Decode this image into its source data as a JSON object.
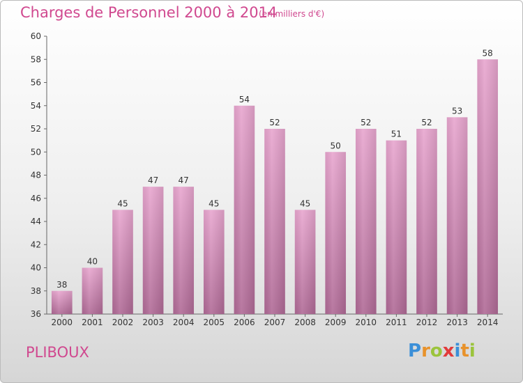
{
  "header": {
    "title": "Charges de Personnel 2000 à 2014",
    "subtitle": "(en milliers d'€)"
  },
  "footer": {
    "commune": "PLIBOUX",
    "logo_letters": [
      "P",
      "r",
      "o",
      "x",
      "i",
      "t",
      "i"
    ],
    "logo_colors": [
      "#3b8fd8",
      "#e8922b",
      "#9bc43c",
      "#e23b3b",
      "#3b8fd8",
      "#e8922b",
      "#9bc43c"
    ]
  },
  "chart_data": {
    "type": "bar",
    "title": "Charges de Personnel 2000 à 2014",
    "subtitle": "(en milliers d'€)",
    "categories": [
      "2000",
      "2001",
      "2002",
      "2003",
      "2004",
      "2005",
      "2006",
      "2007",
      "2008",
      "2009",
      "2010",
      "2011",
      "2012",
      "2013",
      "2014"
    ],
    "values": [
      38,
      40,
      45,
      47,
      47,
      45,
      54,
      52,
      45,
      50,
      52,
      51,
      52,
      53,
      58
    ],
    "ylim": [
      36,
      60
    ],
    "yticks": [
      36,
      38,
      40,
      42,
      44,
      46,
      48,
      50,
      52,
      54,
      56,
      58,
      60
    ],
    "grid": false,
    "bar_color_top": "#e8a6cf",
    "bar_color_bottom": "#b06a96"
  }
}
